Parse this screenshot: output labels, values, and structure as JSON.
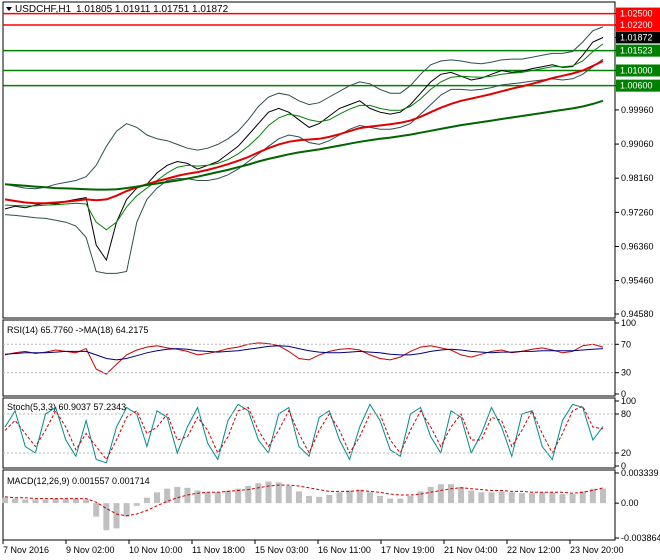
{
  "header": {
    "symbol": "USDCHF,H1",
    "ohlc": "1.01805 1.01911 1.01751 1.01872",
    "dropdown_icon": "triangle-down-icon"
  },
  "chart_data": [
    {
      "type": "line",
      "name": "price",
      "y_ticks": [
        "1.02500",
        "1.02200",
        "1.01872",
        "1.01523",
        "1.01000",
        "1.00600",
        "0.99960",
        "0.99060",
        "0.98160",
        "0.97260",
        "0.96360",
        "0.95460",
        "0.94580"
      ],
      "ylim": [
        0.9458,
        1.027
      ],
      "x_labels": [
        "7 Nov 2016",
        "9 Nov 02:00",
        "10 Nov 10:00",
        "11 Nov 18:00",
        "15 Nov 03:00",
        "16 Nov 11:00",
        "17 Nov 19:00",
        "21 Nov 04:00",
        "22 Nov 12:00",
        "23 Nov 20:00"
      ],
      "price_labels": [
        {
          "value": "1.02500",
          "bg": "#ff0000",
          "color": "#ffffff"
        },
        {
          "value": "1.02200",
          "bg": "#ff0000",
          "color": "#ffffff"
        },
        {
          "value": "1.01872",
          "bg": "#000000",
          "color": "#ffffff"
        },
        {
          "value": "1.01523",
          "bg": "#008000",
          "color": "#ffffff"
        },
        {
          "value": "1.01000",
          "bg": "#008000",
          "color": "#ffffff"
        },
        {
          "value": "1.00600",
          "bg": "#008000",
          "color": "#ffffff"
        }
      ],
      "horizontal_levels": [
        {
          "value": 1.025,
          "color": "#ff0000"
        },
        {
          "value": 1.022,
          "color": "#ff0000"
        },
        {
          "value": 1.01523,
          "color": "#008000"
        },
        {
          "value": 1.01,
          "color": "#008000"
        },
        {
          "value": 1.006,
          "color": "#008000"
        }
      ],
      "series": [
        {
          "role": "close",
          "color": "#000000",
          "values": [
            0.9735,
            0.9742,
            0.9738,
            0.9745,
            0.975,
            0.9748,
            0.9755,
            0.976,
            0.9765,
            0.964,
            0.96,
            0.97,
            0.976,
            0.979,
            0.98,
            0.983,
            0.985,
            0.986,
            0.9855,
            0.984,
            0.985,
            0.986,
            0.988,
            0.99,
            0.993,
            0.996,
            0.999,
            1.0,
            0.999,
            0.997,
            0.995,
            0.996,
            0.998,
            1.0,
            1.001,
            1.002,
            1.0,
            0.999,
            0.9985,
            0.999,
            1.001,
            1.004,
            1.007,
            1.009,
            1.0095,
            1.0085,
            1.0075,
            1.008,
            1.009,
            1.01,
            1.0095,
            1.0098,
            1.0105,
            1.011,
            1.0115,
            1.0108,
            1.011,
            1.014,
            1.0175,
            1.0187
          ]
        },
        {
          "role": "bollinger-upper-20",
          "color": "#2f4f4f",
          "values": [
            0.98,
            0.9795,
            0.979,
            0.9788,
            0.9792,
            0.98,
            0.9805,
            0.981,
            0.982,
            0.985,
            0.99,
            0.994,
            0.996,
            0.995,
            0.993,
            0.992,
            0.9915,
            0.9905,
            0.9895,
            0.989,
            0.9895,
            0.9905,
            0.992,
            0.994,
            0.997,
            1.0005,
            1.003,
            1.004,
            1.0035,
            1.002,
            1.001,
            1.0015,
            1.003,
            1.0045,
            1.006,
            1.007,
            1.0065,
            1.005,
            1.004,
            1.004,
            1.006,
            1.009,
            1.0115,
            1.0125,
            1.0128,
            1.0125,
            1.012,
            1.0118,
            1.0122,
            1.0128,
            1.013,
            1.013,
            1.0135,
            1.014,
            1.0145,
            1.0145,
            1.015,
            1.0175,
            1.0205,
            1.0215
          ]
        },
        {
          "role": "bollinger-lower-20",
          "color": "#2f4f4f",
          "values": [
            0.972,
            0.9718,
            0.9715,
            0.9712,
            0.971,
            0.9705,
            0.97,
            0.969,
            0.966,
            0.957,
            0.9565,
            0.9565,
            0.957,
            0.97,
            0.976,
            0.979,
            0.981,
            0.9815,
            0.9815,
            0.981,
            0.981,
            0.9815,
            0.9825,
            0.984,
            0.986,
            0.988,
            0.99,
            0.992,
            0.993,
            0.9925,
            0.991,
            0.9905,
            0.9915,
            0.993,
            0.9945,
            0.9955,
            0.995,
            0.9945,
            0.9945,
            0.995,
            0.996,
            0.9985,
            1.001,
            1.0035,
            1.005,
            1.005,
            1.0048,
            1.005,
            1.0055,
            1.0062,
            1.0065,
            1.0068,
            1.0072,
            1.0075,
            1.0078,
            1.0075,
            1.0078,
            1.009,
            1.011,
            1.013
          ]
        },
        {
          "role": "ma-fast",
          "color": "#008000",
          "values": [
            0.9745,
            0.9744,
            0.9743,
            0.9743,
            0.9745,
            0.9746,
            0.9748,
            0.975,
            0.9748,
            0.97,
            0.968,
            0.97,
            0.974,
            0.977,
            0.979,
            0.981,
            0.983,
            0.9845,
            0.985,
            0.9848,
            0.985,
            0.9855,
            0.9865,
            0.988,
            0.99,
            0.9925,
            0.9955,
            0.9975,
            0.9985,
            0.998,
            0.997,
            0.9965,
            0.997,
            0.9985,
            0.9998,
            1.0008,
            1.0008,
            1.0,
            0.9995,
            0.9995,
            1.0005,
            1.0025,
            1.005,
            1.007,
            1.0082,
            1.0085,
            1.0083,
            1.0082,
            1.0085,
            1.009,
            1.0093,
            1.0095,
            1.01,
            1.0105,
            1.011,
            1.011,
            1.0112,
            1.0125,
            1.015,
            1.017
          ]
        },
        {
          "role": "ma-red",
          "color": "#e00000",
          "values": [
            0.976,
            0.9756,
            0.9752,
            0.975,
            0.975,
            0.9752,
            0.9754,
            0.9757,
            0.976,
            0.9758,
            0.976,
            0.977,
            0.9782,
            0.9792,
            0.98,
            0.9808,
            0.9815,
            0.9822,
            0.9828,
            0.9832,
            0.9838,
            0.9845,
            0.9853,
            0.9862,
            0.9872,
            0.9884,
            0.9895,
            0.9905,
            0.9912,
            0.9916,
            0.9918,
            0.992,
            0.9925,
            0.9932,
            0.994,
            0.9948,
            0.9952,
            0.9955,
            0.9958,
            0.9962,
            0.9968,
            0.9978,
            0.999,
            1.0002,
            1.0012,
            1.002,
            1.0026,
            1.0032,
            1.0038,
            1.0045,
            1.0052,
            1.0058,
            1.0065,
            1.0072,
            1.008,
            1.0086,
            1.0092,
            1.01,
            1.0112,
            1.0125
          ]
        },
        {
          "role": "ma-slow",
          "color": "#006400",
          "values": [
            0.98,
            0.9798,
            0.9796,
            0.9794,
            0.9792,
            0.979,
            0.9789,
            0.9788,
            0.9787,
            0.9786,
            0.9786,
            0.9787,
            0.979,
            0.9794,
            0.9798,
            0.9802,
            0.9806,
            0.981,
            0.9815,
            0.982,
            0.9826,
            0.9832,
            0.9838,
            0.9845,
            0.9852,
            0.986,
            0.9867,
            0.9873,
            0.9879,
            0.9884,
            0.9888,
            0.9892,
            0.9897,
            0.9902,
            0.9907,
            0.9912,
            0.9916,
            0.992,
            0.9923,
            0.9927,
            0.9931,
            0.9936,
            0.9941,
            0.9946,
            0.9951,
            0.9956,
            0.996,
            0.9964,
            0.9968,
            0.9972,
            0.9976,
            0.998,
            0.9984,
            0.9988,
            0.9992,
            0.9996,
            1.0,
            1.0005,
            1.0012,
            1.002
          ]
        }
      ]
    },
    {
      "type": "line",
      "name": "RSI",
      "title": "RSI(14) 65.7760  ->MA(18) 64.2175",
      "y_ticks": [
        "100",
        "70",
        "30",
        "0"
      ],
      "ylim": [
        0,
        100
      ],
      "series": [
        {
          "role": "rsi",
          "color": "#cc0000",
          "values": [
            55,
            58,
            60,
            57,
            59,
            62,
            60,
            58,
            64,
            35,
            28,
            42,
            55,
            62,
            66,
            68,
            65,
            63,
            60,
            55,
            57,
            60,
            64,
            66,
            70,
            72,
            71,
            68,
            60,
            50,
            48,
            55,
            60,
            63,
            64,
            62,
            55,
            50,
            48,
            52,
            60,
            66,
            68,
            65,
            62,
            55,
            52,
            56,
            60,
            62,
            58,
            60,
            63,
            65,
            62,
            58,
            60,
            68,
            70,
            66
          ]
        },
        {
          "role": "rsi-ma",
          "color": "#000080",
          "values": [
            56,
            57,
            58,
            58,
            58,
            59,
            60,
            60,
            60,
            55,
            50,
            48,
            50,
            54,
            58,
            61,
            63,
            64,
            63,
            61,
            60,
            59,
            60,
            61,
            63,
            65,
            67,
            68,
            67,
            64,
            61,
            59,
            58,
            58,
            59,
            60,
            59,
            58,
            56,
            55,
            55,
            57,
            60,
            62,
            63,
            62,
            60,
            59,
            58,
            59,
            59,
            60,
            60,
            61,
            61,
            61,
            61,
            62,
            63,
            64
          ]
        }
      ]
    },
    {
      "type": "line",
      "name": "Stochastic",
      "title": "Stoch(5,3,3) 60.9037 57.2343",
      "y_ticks": [
        "100",
        "80",
        "20",
        "0"
      ],
      "ylim": [
        0,
        100
      ],
      "series": [
        {
          "role": "main",
          "color": "#008b8b",
          "values": [
            60,
            85,
            30,
            20,
            80,
            90,
            40,
            15,
            70,
            10,
            5,
            60,
            90,
            80,
            30,
            85,
            75,
            20,
            60,
            90,
            35,
            10,
            70,
            95,
            85,
            40,
            20,
            80,
            90,
            30,
            15,
            75,
            85,
            40,
            10,
            60,
            95,
            70,
            25,
            15,
            80,
            90,
            45,
            20,
            85,
            75,
            20,
            50,
            90,
            60,
            15,
            80,
            85,
            30,
            10,
            70,
            95,
            90,
            40,
            61
          ]
        },
        {
          "role": "signal",
          "color": "#cc0000",
          "values": [
            55,
            70,
            50,
            30,
            55,
            85,
            60,
            25,
            50,
            30,
            10,
            40,
            75,
            85,
            50,
            60,
            80,
            40,
            45,
            75,
            55,
            20,
            45,
            85,
            90,
            55,
            30,
            55,
            85,
            50,
            20,
            55,
            80,
            55,
            20,
            45,
            80,
            80,
            40,
            20,
            55,
            85,
            60,
            30,
            60,
            80,
            40,
            40,
            75,
            70,
            30,
            55,
            85,
            50,
            20,
            50,
            85,
            92,
            60,
            57
          ]
        }
      ]
    },
    {
      "type": "bar",
      "name": "MACD",
      "title": "MACD(12,26,9) 0.001557 0.001714",
      "y_ticks": [
        "0.003339",
        "0.00",
        "-0.003864"
      ],
      "ylim": [
        -0.003864,
        0.003339
      ],
      "series": [
        {
          "role": "histogram",
          "color": "#c0c0c0",
          "values": [
            0.0006,
            0.0005,
            0.0004,
            0.0004,
            0.0004,
            0.0005,
            0.0005,
            0.0005,
            0.0004,
            -0.0015,
            -0.003,
            -0.0028,
            -0.0015,
            -0.0003,
            0.0006,
            0.0012,
            0.0016,
            0.0018,
            0.0017,
            0.0014,
            0.0012,
            0.0012,
            0.0014,
            0.0016,
            0.0019,
            0.0022,
            0.0024,
            0.0023,
            0.0019,
            0.0013,
            0.0008,
            0.0007,
            0.0009,
            0.0012,
            0.0014,
            0.0015,
            0.0012,
            0.0008,
            0.0005,
            0.0005,
            0.0008,
            0.0013,
            0.0018,
            0.0021,
            0.0021,
            0.0018,
            0.0014,
            0.0012,
            0.0012,
            0.0013,
            0.0012,
            0.0011,
            0.0011,
            0.0012,
            0.0012,
            0.001,
            0.001,
            0.0013,
            0.0016,
            0.0016
          ]
        },
        {
          "role": "signal",
          "color": "#cc0000",
          "values": [
            0.0007,
            0.0006,
            0.0006,
            0.0005,
            0.0005,
            0.0005,
            0.0005,
            0.0005,
            0.0005,
            0.0001,
            -0.0006,
            -0.0012,
            -0.0014,
            -0.0012,
            -0.0008,
            -0.0003,
            0.0002,
            0.0006,
            0.0009,
            0.0011,
            0.0012,
            0.0012,
            0.0013,
            0.0014,
            0.0015,
            0.0017,
            0.0019,
            0.002,
            0.002,
            0.0019,
            0.0017,
            0.0015,
            0.0013,
            0.0013,
            0.0013,
            0.0014,
            0.0013,
            0.0012,
            0.001,
            0.0009,
            0.0009,
            0.001,
            0.0012,
            0.0014,
            0.0016,
            0.0017,
            0.0016,
            0.0015,
            0.0014,
            0.0014,
            0.0013,
            0.0013,
            0.0012,
            0.0012,
            0.0012,
            0.0012,
            0.0011,
            0.0012,
            0.0014,
            0.0017
          ]
        }
      ]
    }
  ]
}
